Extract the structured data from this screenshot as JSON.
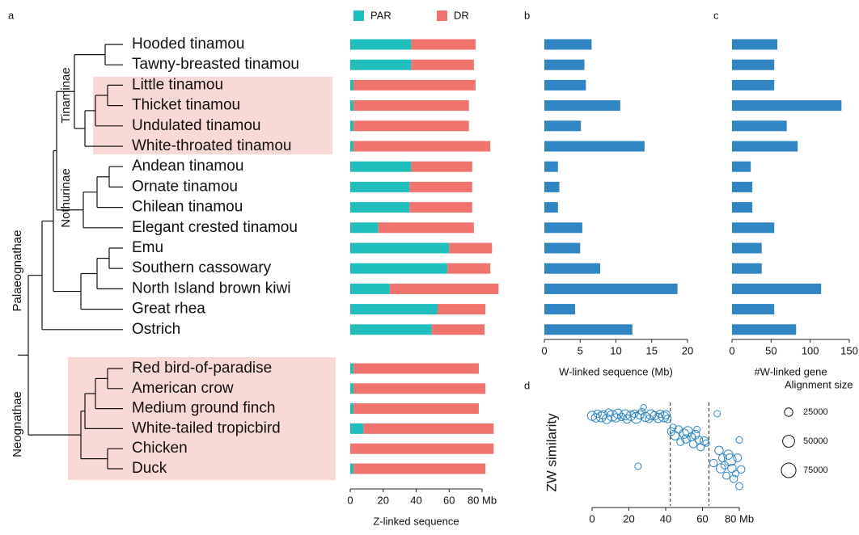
{
  "panel_labels": [
    "a",
    "b",
    "c",
    "d"
  ],
  "tree": {
    "clades": [
      "Tinaminae",
      "Nothurinae",
      "Palaeognathae",
      "Neognathae"
    ]
  },
  "chart_data": [
    {
      "type": "bar",
      "orientation": "horizontal",
      "stacked": true,
      "categories": [
        "Hooded tinamou",
        "Tawny-breasted tinamou",
        "Little tinamou",
        "Thicket tinamou",
        "Undulated tinamou",
        "White-throated tinamou",
        "Andean tinamou",
        "Ornate tinamou",
        "Chilean tinamou",
        "Elegant crested tinamou",
        "Emu",
        "Southern cassowary",
        "North Island brown kiwi",
        "Great rhea",
        "Ostrich",
        "Red bird-of-paradise",
        "American crow",
        "Medium ground finch",
        "White-tailed tropicbird",
        "Chicken",
        "Duck"
      ],
      "series": [
        {
          "name": "PAR",
          "color": "#20bfbe",
          "values": [
            37,
            37,
            2,
            2,
            2,
            2,
            37,
            36,
            36,
            17,
            60,
            59,
            24,
            53,
            49.5,
            2,
            2,
            2,
            8,
            0,
            2
          ]
        },
        {
          "name": "DR",
          "color": "#f1736d",
          "values": [
            39,
            38,
            74,
            70,
            70,
            83,
            37,
            38,
            38,
            58,
            26,
            26,
            66,
            29,
            32,
            76,
            80,
            76,
            79,
            87,
            80
          ]
        }
      ],
      "xlabel": "Z-linked sequence",
      "xlim": [
        0,
        90
      ],
      "xticks": [
        0,
        20,
        40,
        60,
        {
          "value": 80,
          "label": "80 Mb"
        }
      ]
    },
    {
      "type": "bar",
      "orientation": "horizontal",
      "color": "#2f86c2",
      "values": [
        6.6,
        5.6,
        5.8,
        10.6,
        5.1,
        14.0,
        1.9,
        2.1,
        1.9,
        5.3,
        5.0,
        7.8,
        18.6,
        4.3,
        12.3
      ],
      "xlabel": "W-linked sequence (Mb)",
      "xlim": [
        0,
        20
      ],
      "xticks": [
        0,
        5,
        10,
        15,
        20
      ]
    },
    {
      "type": "bar",
      "orientation": "horizontal",
      "color": "#2f86c2",
      "values": [
        58,
        54,
        54,
        140,
        70,
        84,
        24,
        26,
        26,
        54,
        38,
        38,
        114,
        54,
        82
      ],
      "xlabel": "#W-linked gene",
      "xlim": [
        0,
        150
      ],
      "xticks": [
        0,
        50,
        100,
        150
      ]
    },
    {
      "type": "scatter",
      "color": "#2f86c2",
      "ylabel": "ZW similarity",
      "x": [
        0,
        2,
        3,
        5,
        6,
        8,
        9,
        11,
        13,
        14,
        16,
        18,
        19,
        21,
        23,
        24,
        26,
        27,
        29,
        31,
        32,
        34,
        36,
        37,
        39,
        40,
        41,
        28,
        25,
        43,
        44,
        45,
        47,
        48,
        50,
        51,
        52,
        54,
        55,
        56,
        58,
        59,
        61,
        62,
        57,
        66,
        68,
        69,
        70,
        71,
        72,
        73,
        75,
        76,
        77,
        78,
        79,
        80,
        81,
        80,
        74
      ],
      "values": [
        0.85,
        0.83,
        0.87,
        0.84,
        0.86,
        0.82,
        0.88,
        0.85,
        0.83,
        0.87,
        0.84,
        0.86,
        0.82,
        0.85,
        0.87,
        0.83,
        0.86,
        0.89,
        0.84,
        0.82,
        0.86,
        0.85,
        0.83,
        0.87,
        0.84,
        0.86,
        0.82,
        0.93,
        0.37,
        0.7,
        0.74,
        0.66,
        0.72,
        0.6,
        0.68,
        0.63,
        0.7,
        0.65,
        0.58,
        0.67,
        0.62,
        0.55,
        0.61,
        0.59,
        0.72,
        0.4,
        0.87,
        0.52,
        0.35,
        0.45,
        0.38,
        0.28,
        0.43,
        0.35,
        0.25,
        0.3,
        0.45,
        0.18,
        0.34,
        0.62,
        0.48
      ],
      "sizes": [
        30000,
        25000,
        20000,
        35000,
        25000,
        30000,
        20000,
        40000,
        25000,
        30000,
        20000,
        35000,
        25000,
        30000,
        20000,
        40000,
        25000,
        15000,
        30000,
        20000,
        35000,
        25000,
        30000,
        20000,
        35000,
        25000,
        20000,
        12000,
        15000,
        20000,
        15000,
        25000,
        20000,
        18000,
        30000,
        25000,
        35000,
        22000,
        20000,
        28000,
        20000,
        18000,
        25000,
        15000,
        15000,
        20000,
        15000,
        25000,
        30000,
        22000,
        20000,
        18000,
        50000,
        25000,
        20000,
        15000,
        22000,
        18000,
        20000,
        15000,
        30000
      ],
      "xlim": [
        -5,
        85
      ],
      "xticks": [
        0,
        20,
        40,
        60,
        {
          "value": 80,
          "label": "80 Mb"
        }
      ],
      "ylim": [
        0,
        1
      ],
      "vlines": [
        42.5,
        63.5
      ],
      "legend": {
        "title": "Alignment size",
        "sizes": [
          25000,
          50000,
          75000
        ]
      }
    }
  ]
}
